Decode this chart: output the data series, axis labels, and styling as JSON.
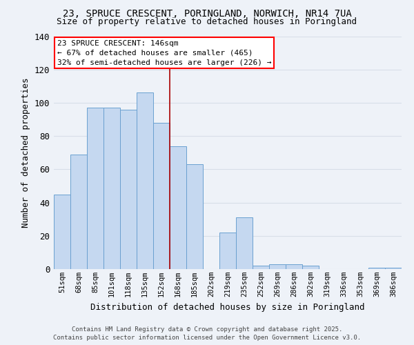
{
  "title_line1": "23, SPRUCE CRESCENT, PORINGLAND, NORWICH, NR14 7UA",
  "title_line2": "Size of property relative to detached houses in Poringland",
  "xlabel": "Distribution of detached houses by size in Poringland",
  "ylabel": "Number of detached properties",
  "bar_labels": [
    "51sqm",
    "68sqm",
    "85sqm",
    "101sqm",
    "118sqm",
    "135sqm",
    "152sqm",
    "168sqm",
    "185sqm",
    "202sqm",
    "219sqm",
    "235sqm",
    "252sqm",
    "269sqm",
    "286sqm",
    "302sqm",
    "319sqm",
    "336sqm",
    "353sqm",
    "369sqm",
    "386sqm"
  ],
  "bar_values": [
    45,
    69,
    97,
    97,
    96,
    106,
    88,
    74,
    63,
    0,
    22,
    31,
    2,
    3,
    3,
    2,
    0,
    0,
    0,
    1,
    1
  ],
  "bar_color": "#c5d8f0",
  "bar_edge_color": "#6aa0d0",
  "background_color": "#eef2f8",
  "grid_color": "#d8dfe8",
  "annotation_text": "23 SPRUCE CRESCENT: 146sqm\n← 67% of detached houses are smaller (465)\n32% of semi-detached houses are larger (226) →",
  "vline_x": 6.5,
  "vline_color": "#aa0000",
  "ylim": [
    0,
    140
  ],
  "yticks": [
    0,
    20,
    40,
    60,
    80,
    100,
    120,
    140
  ],
  "footer_line1": "Contains HM Land Registry data © Crown copyright and database right 2025.",
  "footer_line2": "Contains public sector information licensed under the Open Government Licence v3.0."
}
